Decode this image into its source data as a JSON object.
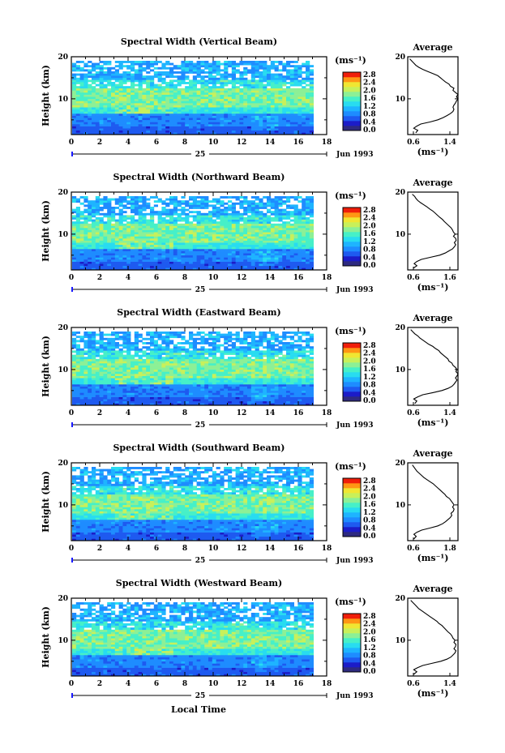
{
  "colors": {
    "colormap": [
      "#2e2a80",
      "#1c1cc8",
      "#1e5af0",
      "#1e8cff",
      "#1eb4ff",
      "#28dcf0",
      "#46f0c8",
      "#8cf096",
      "#c8f05a",
      "#f0e632",
      "#ff9614",
      "#f01e0a"
    ],
    "background": "#ffffff",
    "axis": "#000000",
    "date_marker": "#1a1aff"
  },
  "x_axis_label": "Local Time",
  "chart_data": [
    {
      "type": "heatmap",
      "title": "Spectral Width (Vertical Beam)",
      "ylabel": "Height (km)",
      "xticks": [
        "0",
        "2",
        "4",
        "6",
        "8",
        "10",
        "12",
        "14",
        "16",
        "18"
      ],
      "yticks": [
        "10",
        "20"
      ],
      "xlim": [
        0,
        18
      ],
      "ylim": [
        1.5,
        20
      ],
      "date_day": "25",
      "date_month": "Jun 1993",
      "colorbar": {
        "unit": "(ms⁻¹)",
        "ticks": [
          "2.8",
          "2.4",
          "2.0",
          "1.6",
          "1.2",
          "0.8",
          "0.4",
          "0.0"
        ]
      },
      "average": {
        "title": "Average",
        "xticks": [
          "0.6",
          "1.4"
        ],
        "xlim": [
          0.6,
          1.6
        ],
        "yticks": [
          "10",
          "20"
        ],
        "xlabel": "(ms⁻¹)",
        "profile": [
          [
            1.9,
            0.76
          ],
          [
            2.5,
            0.8
          ],
          [
            3,
            0.72
          ],
          [
            3.5,
            0.78
          ],
          [
            4,
            0.86
          ],
          [
            4.5,
            1.05
          ],
          [
            5,
            1.2
          ],
          [
            5.5,
            1.3
          ],
          [
            6,
            1.38
          ],
          [
            6.5,
            1.45
          ],
          [
            7,
            1.5
          ],
          [
            7.5,
            1.52
          ],
          [
            8,
            1.5
          ],
          [
            8.5,
            1.52
          ],
          [
            9,
            1.55
          ],
          [
            9.5,
            1.57
          ],
          [
            10,
            1.6
          ],
          [
            10.5,
            1.57
          ],
          [
            11,
            1.6
          ],
          [
            11.5,
            1.55
          ],
          [
            12,
            1.5
          ],
          [
            12.5,
            1.52
          ],
          [
            13,
            1.45
          ],
          [
            13.5,
            1.42
          ],
          [
            14,
            1.35
          ],
          [
            14.5,
            1.3
          ],
          [
            15,
            1.25
          ],
          [
            15.5,
            1.2
          ],
          [
            16,
            1.1
          ],
          [
            16.5,
            1.0
          ],
          [
            17,
            0.9
          ],
          [
            17.5,
            0.82
          ],
          [
            18,
            0.76
          ],
          [
            18.5,
            0.72
          ],
          [
            19,
            0.68
          ],
          [
            19.5,
            0.64
          ]
        ]
      }
    },
    {
      "type": "heatmap",
      "title": "Spectral Width (Northward Beam)",
      "ylabel": "Height (km)",
      "xticks": [
        "0",
        "2",
        "4",
        "6",
        "8",
        "10",
        "12",
        "14",
        "16",
        "18"
      ],
      "yticks": [
        "10",
        "20"
      ],
      "xlim": [
        0,
        18
      ],
      "ylim": [
        1.5,
        20
      ],
      "date_day": "25",
      "date_month": "Jun 1993",
      "colorbar": {
        "unit": "(ms⁻¹)",
        "ticks": [
          "2.8",
          "2.4",
          "2.0",
          "1.6",
          "1.2",
          "0.8",
          "0.4",
          "0.0"
        ]
      },
      "average": {
        "title": "Average",
        "xticks": [
          "0.6",
          "1.6"
        ],
        "xlim": [
          0.6,
          1.7
        ],
        "yticks": [
          "10",
          "20"
        ],
        "xlabel": "(ms⁻¹)",
        "profile": [
          [
            1.9,
            0.72
          ],
          [
            2.5,
            0.8
          ],
          [
            3,
            0.74
          ],
          [
            3.5,
            0.8
          ],
          [
            4,
            0.9
          ],
          [
            4.5,
            1.1
          ],
          [
            5,
            1.3
          ],
          [
            5.5,
            1.42
          ],
          [
            6,
            1.5
          ],
          [
            6.5,
            1.58
          ],
          [
            7,
            1.62
          ],
          [
            7.5,
            1.65
          ],
          [
            8,
            1.62
          ],
          [
            8.5,
            1.66
          ],
          [
            9,
            1.65
          ],
          [
            9.5,
            1.6
          ],
          [
            10,
            1.64
          ],
          [
            10.5,
            1.6
          ],
          [
            11,
            1.58
          ],
          [
            11.5,
            1.55
          ],
          [
            12,
            1.5
          ],
          [
            12.5,
            1.45
          ],
          [
            13,
            1.4
          ],
          [
            13.5,
            1.36
          ],
          [
            14,
            1.3
          ],
          [
            14.5,
            1.25
          ],
          [
            15,
            1.2
          ],
          [
            15.5,
            1.15
          ],
          [
            16,
            1.08
          ],
          [
            16.5,
            1.02
          ],
          [
            17,
            0.95
          ],
          [
            17.5,
            0.88
          ],
          [
            18,
            0.82
          ],
          [
            18.5,
            0.78
          ],
          [
            19,
            0.75
          ],
          [
            19.5,
            0.7
          ]
        ]
      }
    },
    {
      "type": "heatmap",
      "title": "Spectral Width (Eastward Beam)",
      "ylabel": "Height (km)",
      "xticks": [
        "0",
        "2",
        "4",
        "6",
        "8",
        "10",
        "12",
        "14",
        "16",
        "18"
      ],
      "yticks": [
        "10",
        "20"
      ],
      "xlim": [
        0,
        18
      ],
      "ylim": [
        1.5,
        20
      ],
      "date_day": "25",
      "date_month": "Jun 1993",
      "colorbar": {
        "unit": "(ms⁻¹)",
        "ticks": [
          "2.8",
          "2.4",
          "2.0",
          "1.6",
          "1.2",
          "0.8",
          "0.4",
          "0.0"
        ]
      },
      "average": {
        "title": "Average",
        "xticks": [
          "0.6",
          "1.4"
        ],
        "xlim": [
          0.6,
          1.6
        ],
        "yticks": [
          "10",
          "20"
        ],
        "xlabel": "(ms⁻¹)",
        "profile": [
          [
            1.9,
            0.74
          ],
          [
            2.5,
            0.78
          ],
          [
            3,
            0.72
          ],
          [
            3.5,
            0.8
          ],
          [
            4,
            0.9
          ],
          [
            4.5,
            1.1
          ],
          [
            5,
            1.28
          ],
          [
            5.5,
            1.4
          ],
          [
            6,
            1.48
          ],
          [
            6.5,
            1.52
          ],
          [
            7,
            1.55
          ],
          [
            7.5,
            1.58
          ],
          [
            8,
            1.55
          ],
          [
            8.5,
            1.58
          ],
          [
            9,
            1.6
          ],
          [
            9.5,
            1.56
          ],
          [
            10,
            1.58
          ],
          [
            10.5,
            1.55
          ],
          [
            11,
            1.5
          ],
          [
            11.5,
            1.48
          ],
          [
            12,
            1.42
          ],
          [
            12.5,
            1.4
          ],
          [
            13,
            1.35
          ],
          [
            13.5,
            1.3
          ],
          [
            14,
            1.25
          ],
          [
            14.5,
            1.22
          ],
          [
            15,
            1.15
          ],
          [
            15.5,
            1.1
          ],
          [
            16,
            1.02
          ],
          [
            16.5,
            0.96
          ],
          [
            17,
            0.9
          ],
          [
            17.5,
            0.84
          ],
          [
            18,
            0.8
          ],
          [
            18.5,
            0.74
          ],
          [
            19,
            0.7
          ],
          [
            19.5,
            0.66
          ]
        ]
      }
    },
    {
      "type": "heatmap",
      "title": "Spectral Width (Southward Beam)",
      "ylabel": "Height (km)",
      "xticks": [
        "0",
        "2",
        "4",
        "6",
        "8",
        "10",
        "12",
        "14",
        "16",
        "18"
      ],
      "yticks": [
        "10",
        "20"
      ],
      "xlim": [
        0,
        18
      ],
      "ylim": [
        1.5,
        20
      ],
      "date_day": "25",
      "date_month": "Jun 1993",
      "colorbar": {
        "unit": "(ms⁻¹)",
        "ticks": [
          "2.8",
          "2.4",
          "2.0",
          "1.6",
          "1.2",
          "0.8",
          "0.4",
          "0.0"
        ]
      },
      "average": {
        "title": "Average",
        "xticks": [
          "0.6",
          "1.8"
        ],
        "xlim": [
          0.6,
          1.9
        ],
        "yticks": [
          "10",
          "20"
        ],
        "xlabel": "(ms⁻¹)",
        "profile": [
          [
            1.9,
            0.76
          ],
          [
            2.5,
            0.82
          ],
          [
            3,
            0.76
          ],
          [
            3.5,
            0.84
          ],
          [
            4,
            0.96
          ],
          [
            4.5,
            1.18
          ],
          [
            5,
            1.38
          ],
          [
            5.5,
            1.5
          ],
          [
            6,
            1.58
          ],
          [
            6.5,
            1.64
          ],
          [
            7,
            1.7
          ],
          [
            7.5,
            1.74
          ],
          [
            8,
            1.72
          ],
          [
            8.5,
            1.78
          ],
          [
            9,
            1.8
          ],
          [
            9.5,
            1.76
          ],
          [
            10,
            1.8
          ],
          [
            10.5,
            1.76
          ],
          [
            11,
            1.72
          ],
          [
            11.5,
            1.68
          ],
          [
            12,
            1.6
          ],
          [
            12.5,
            1.56
          ],
          [
            13,
            1.5
          ],
          [
            13.5,
            1.44
          ],
          [
            14,
            1.38
          ],
          [
            14.5,
            1.32
          ],
          [
            15,
            1.26
          ],
          [
            15.5,
            1.18
          ],
          [
            16,
            1.1
          ],
          [
            16.5,
            1.02
          ],
          [
            17,
            0.96
          ],
          [
            17.5,
            0.9
          ],
          [
            18,
            0.84
          ],
          [
            18.5,
            0.8
          ],
          [
            19,
            0.76
          ],
          [
            19.5,
            0.72
          ]
        ]
      }
    },
    {
      "type": "heatmap",
      "title": "Spectral Width (Westward Beam)",
      "ylabel": "Height (km)",
      "xticks": [
        "0",
        "2",
        "4",
        "6",
        "8",
        "10",
        "12",
        "14",
        "16",
        "18"
      ],
      "yticks": [
        "10",
        "20"
      ],
      "xlim": [
        0,
        18
      ],
      "ylim": [
        1.5,
        20
      ],
      "date_day": "25",
      "date_month": "Jun 1993",
      "colorbar": {
        "unit": "(ms⁻¹)",
        "ticks": [
          "2.8",
          "2.4",
          "2.0",
          "1.6",
          "1.2",
          "0.8",
          "0.4",
          "0.0"
        ]
      },
      "average": {
        "title": "Average",
        "xticks": [
          "0.6",
          "1.4"
        ],
        "xlim": [
          0.6,
          1.6
        ],
        "yticks": [
          "10",
          "20"
        ],
        "xlabel": "(ms⁻¹)",
        "profile": [
          [
            1.9,
            0.72
          ],
          [
            2.5,
            0.78
          ],
          [
            3,
            0.72
          ],
          [
            3.5,
            0.8
          ],
          [
            4,
            0.9
          ],
          [
            4.5,
            1.08
          ],
          [
            5,
            1.26
          ],
          [
            5.5,
            1.38
          ],
          [
            6,
            1.46
          ],
          [
            6.5,
            1.5
          ],
          [
            7,
            1.54
          ],
          [
            7.5,
            1.56
          ],
          [
            8,
            1.52
          ],
          [
            8.5,
            1.55
          ],
          [
            9,
            1.56
          ],
          [
            9.5,
            1.52
          ],
          [
            10,
            1.54
          ],
          [
            10.5,
            1.5
          ],
          [
            11,
            1.48
          ],
          [
            11.5,
            1.45
          ],
          [
            12,
            1.4
          ],
          [
            12.5,
            1.36
          ],
          [
            13,
            1.32
          ],
          [
            13.5,
            1.28
          ],
          [
            14,
            1.22
          ],
          [
            14.5,
            1.18
          ],
          [
            15,
            1.12
          ],
          [
            15.5,
            1.06
          ],
          [
            16,
            1.0
          ],
          [
            16.5,
            0.94
          ],
          [
            17,
            0.88
          ],
          [
            17.5,
            0.82
          ],
          [
            18,
            0.78
          ],
          [
            18.5,
            0.74
          ],
          [
            19,
            0.7
          ],
          [
            19.5,
            0.66
          ]
        ]
      }
    }
  ]
}
